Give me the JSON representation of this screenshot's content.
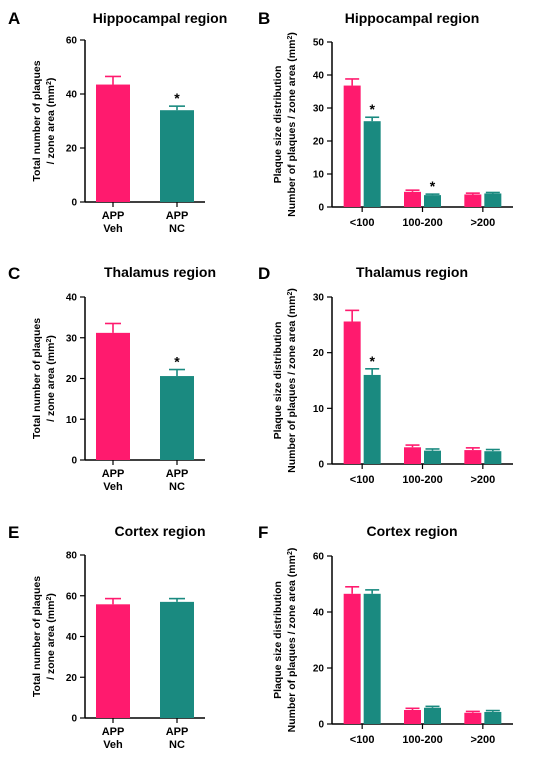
{
  "colors": {
    "veh": "#ff1a6e",
    "nc": "#1a8a80",
    "axis": "#000000"
  },
  "panels": [
    {
      "letter": "A",
      "title": "Hippocampal region",
      "chart_data": {
        "type": "bar",
        "categories": [
          [
            "APP",
            "Veh"
          ],
          [
            "APP",
            "NC"
          ]
        ],
        "ylabel": [
          "Total number of plaques",
          "/ zone area (mm",
          "2",
          ")"
        ],
        "ylim": [
          0,
          60
        ],
        "yticks": [
          0,
          20,
          40,
          60
        ],
        "series": [
          {
            "values": [
              43.5,
              34.0
            ],
            "errors": [
              3.0,
              1.5
            ]
          }
        ],
        "significance": [
          "",
          "*"
        ]
      }
    },
    {
      "letter": "B",
      "title": "Hippocampal region",
      "chart_data": {
        "type": "bar",
        "categories": [
          "<100",
          "100-200",
          ">200"
        ],
        "ylabel": [
          "Plaque size distribution",
          "Number of plaques / zone area (mm",
          "2",
          ")"
        ],
        "ylim": [
          0,
          50
        ],
        "yticks": [
          0,
          10,
          20,
          30,
          40,
          50
        ],
        "series": [
          {
            "values": [
              36.8,
              4.6,
              3.8
            ],
            "errors": [
              2.0,
              0.5,
              0.4
            ]
          },
          {
            "values": [
              26.0,
              3.6,
              4.1
            ],
            "errors": [
              1.2,
              0.3,
              0.3
            ]
          }
        ],
        "significance": [
          [
            "",
            "*"
          ],
          [
            "",
            "*"
          ],
          [
            "",
            ""
          ]
        ]
      }
    },
    {
      "letter": "C",
      "title": "Thalamus region",
      "chart_data": {
        "type": "bar",
        "categories": [
          [
            "APP",
            "Veh"
          ],
          [
            "APP",
            "NC"
          ]
        ],
        "ylabel": [
          "Total number of plaques",
          "/ zone area (mm",
          "2",
          ")"
        ],
        "ylim": [
          0,
          40
        ],
        "yticks": [
          0,
          10,
          20,
          30,
          40
        ],
        "series": [
          {
            "values": [
              31.2,
              20.6
            ],
            "errors": [
              2.3,
              1.6
            ]
          }
        ],
        "significance": [
          "",
          "*"
        ]
      }
    },
    {
      "letter": "D",
      "title": "Thalamus region",
      "chart_data": {
        "type": "bar",
        "categories": [
          "<100",
          "100-200",
          ">200"
        ],
        "ylabel": [
          "Plaque size distribution",
          "Number of plaques / zone area (mm",
          "2",
          ")"
        ],
        "ylim": [
          0,
          30
        ],
        "yticks": [
          0,
          10,
          20,
          30
        ],
        "series": [
          {
            "values": [
              25.6,
              3.0,
              2.5
            ],
            "errors": [
              2.0,
              0.4,
              0.4
            ]
          },
          {
            "values": [
              16.0,
              2.4,
              2.3
            ],
            "errors": [
              1.1,
              0.3,
              0.3
            ]
          }
        ],
        "significance": [
          [
            "",
            "*"
          ],
          [
            "",
            ""
          ],
          [
            "",
            ""
          ]
        ]
      }
    },
    {
      "letter": "E",
      "title": "Cortex region",
      "chart_data": {
        "type": "bar",
        "categories": [
          [
            "APP",
            "Veh"
          ],
          [
            "APP",
            "NC"
          ]
        ],
        "ylabel": [
          "Total number of plaques",
          "/ zone area (mm",
          "2",
          ")"
        ],
        "ylim": [
          0,
          80
        ],
        "yticks": [
          0,
          20,
          40,
          60,
          80
        ],
        "series": [
          {
            "values": [
              55.8,
              57.0
            ],
            "errors": [
              2.8,
              1.6
            ]
          }
        ],
        "significance": [
          "",
          ""
        ]
      }
    },
    {
      "letter": "F",
      "title": "Cortex region",
      "chart_data": {
        "type": "bar",
        "categories": [
          "<100",
          "100-200",
          ">200"
        ],
        "ylabel": [
          "Plaque size distribution",
          "Number of plaques / zone area (mm",
          "2",
          ")"
        ],
        "ylim": [
          0,
          60
        ],
        "yticks": [
          0,
          20,
          40,
          60
        ],
        "series": [
          {
            "values": [
              46.5,
              5.0,
              4.0
            ],
            "errors": [
              2.5,
              0.6,
              0.5
            ]
          },
          {
            "values": [
              46.5,
              5.8,
              4.3
            ],
            "errors": [
              1.4,
              0.5,
              0.5
            ]
          }
        ],
        "significance": [
          [
            "",
            ""
          ],
          [
            "",
            ""
          ],
          [
            "",
            ""
          ]
        ]
      }
    }
  ]
}
